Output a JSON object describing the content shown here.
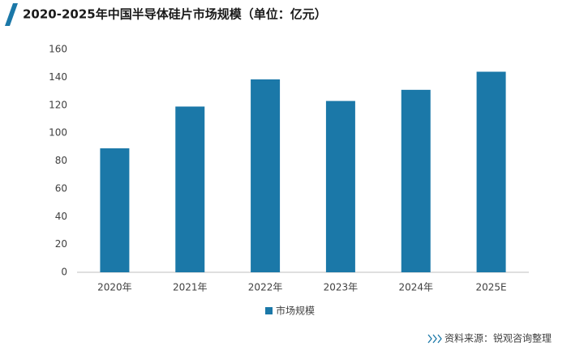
{
  "chart_data": {
    "type": "bar",
    "title": "2020-2025年中国半导体硅片市场规模（单位：亿元）",
    "categories": [
      "2020年",
      "2021年",
      "2022年",
      "2023年",
      "2024年",
      "2025E"
    ],
    "series": [
      {
        "name": "市场规模",
        "color": "#1b78a8",
        "values": [
          89,
          119,
          138.5,
          123,
          131,
          144
        ]
      }
    ],
    "ylim": [
      0,
      160
    ],
    "yticks": [
      0,
      20,
      40,
      60,
      80,
      100,
      120,
      140,
      160
    ],
    "grid": false,
    "legend": "bottom",
    "source": "资料来源：锐观咨询整理"
  }
}
